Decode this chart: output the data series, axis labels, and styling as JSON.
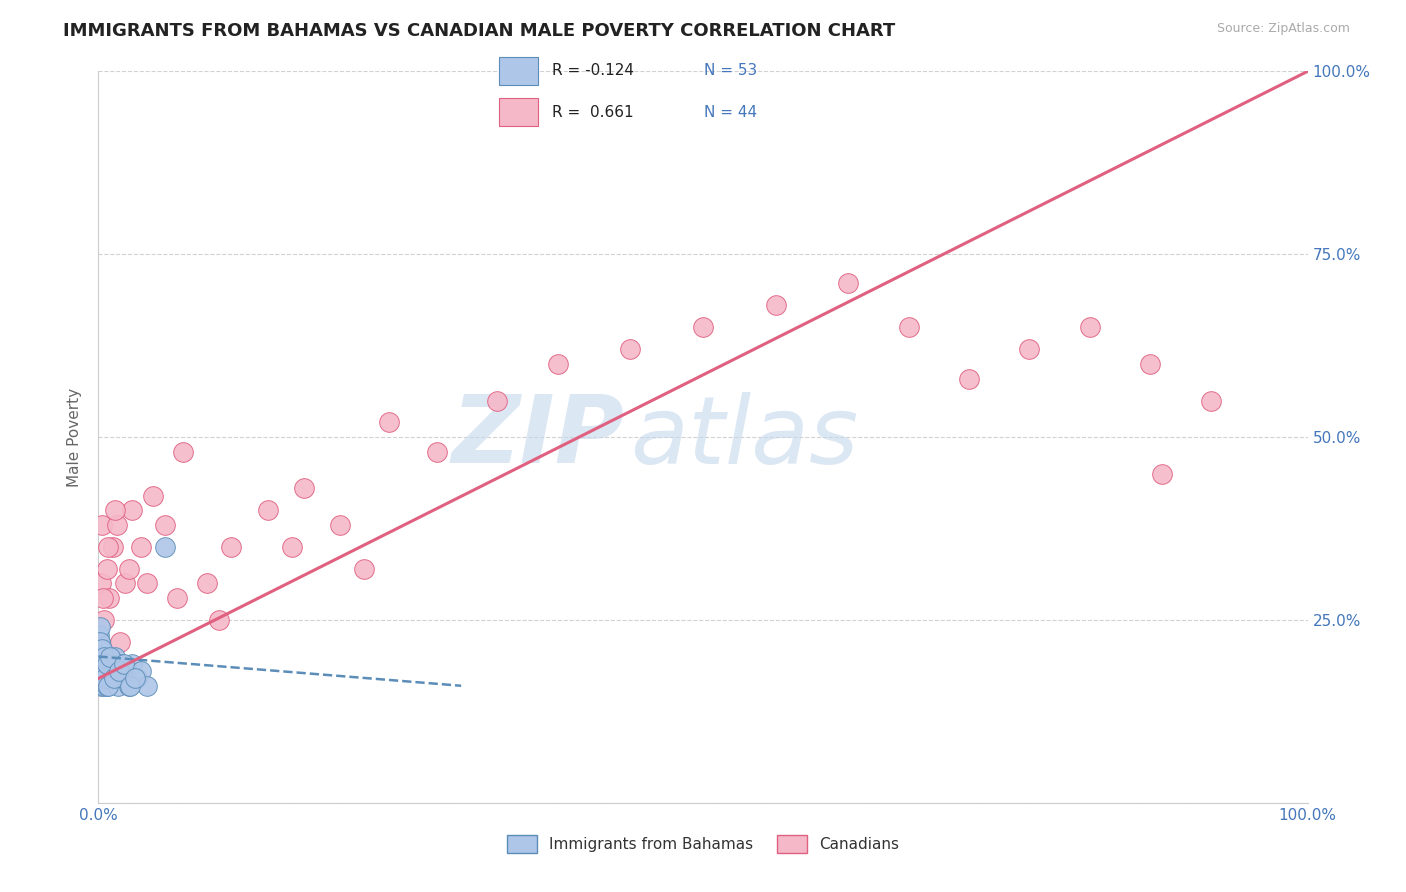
{
  "title": "IMMIGRANTS FROM BAHAMAS VS CANADIAN MALE POVERTY CORRELATION CHART",
  "source_text": "Source: ZipAtlas.com",
  "ylabel": "Male Poverty",
  "blue_color": "#aec6e8",
  "blue_edge_color": "#5b8db8",
  "blue_line_color": "#5b8db8",
  "pink_color": "#f5b8c8",
  "pink_edge_color": "#e06080",
  "pink_line_color": "#e06080",
  "watermark_zip_color": "#c5d8ed",
  "watermark_atlas_color": "#c5d8ed",
  "bg_color": "#ffffff",
  "grid_color": "#cccccc",
  "title_color": "#222222",
  "source_color": "#aaaaaa",
  "axis_color": "#4477bb",
  "ylabel_color": "#666666",
  "legend_r_color": "#222222",
  "legend_n_color": "#4477bb",
  "xlim": [
    0,
    100
  ],
  "ylim": [
    0,
    100
  ],
  "blue_scatter_x": [
    0.05,
    0.08,
    0.1,
    0.12,
    0.15,
    0.18,
    0.2,
    0.22,
    0.25,
    0.3,
    0.35,
    0.4,
    0.45,
    0.5,
    0.55,
    0.6,
    0.65,
    0.7,
    0.8,
    0.9,
    1.0,
    1.1,
    1.2,
    1.4,
    1.6,
    1.8,
    2.0,
    2.2,
    2.5,
    2.8,
    3.2,
    3.5,
    4.0,
    0.05,
    0.07,
    0.09,
    0.11,
    0.14,
    0.17,
    0.21,
    0.28,
    0.38,
    0.48,
    0.58,
    0.68,
    0.78,
    0.95,
    1.3,
    1.7,
    2.1,
    2.6,
    3.0,
    5.5
  ],
  "blue_scatter_y": [
    18.0,
    17.0,
    20.0,
    22.0,
    19.0,
    16.0,
    21.0,
    18.0,
    20.0,
    17.0,
    19.0,
    18.0,
    17.0,
    16.0,
    18.0,
    17.0,
    19.0,
    16.0,
    20.0,
    17.0,
    19.0,
    18.0,
    17.0,
    20.0,
    16.0,
    19.0,
    17.0,
    18.0,
    16.0,
    19.0,
    17.0,
    18.0,
    16.0,
    22.0,
    23.0,
    21.0,
    24.0,
    20.0,
    22.0,
    19.0,
    21.0,
    18.0,
    20.0,
    17.0,
    19.0,
    16.0,
    20.0,
    17.0,
    18.0,
    19.0,
    16.0,
    17.0,
    35.0
  ],
  "pink_scatter_x": [
    0.1,
    0.2,
    0.3,
    0.5,
    0.7,
    0.9,
    1.2,
    1.5,
    1.8,
    2.2,
    2.8,
    3.5,
    4.5,
    5.5,
    7.0,
    9.0,
    11.0,
    14.0,
    17.0,
    20.0,
    24.0,
    28.0,
    33.0,
    38.0,
    44.0,
    50.0,
    56.0,
    62.0,
    67.0,
    72.0,
    77.0,
    82.0,
    87.0,
    92.0,
    0.4,
    0.8,
    1.4,
    2.5,
    4.0,
    6.5,
    10.0,
    16.0,
    22.0,
    88.0
  ],
  "pink_scatter_y": [
    20.0,
    30.0,
    38.0,
    25.0,
    32.0,
    28.0,
    35.0,
    38.0,
    22.0,
    30.0,
    40.0,
    35.0,
    42.0,
    38.0,
    48.0,
    30.0,
    35.0,
    40.0,
    43.0,
    38.0,
    52.0,
    48.0,
    55.0,
    60.0,
    62.0,
    65.0,
    68.0,
    71.0,
    65.0,
    58.0,
    62.0,
    65.0,
    60.0,
    55.0,
    28.0,
    35.0,
    40.0,
    32.0,
    30.0,
    28.0,
    25.0,
    35.0,
    32.0,
    45.0
  ],
  "blue_trend_x0": 0,
  "blue_trend_x1": 30,
  "blue_trend_y0": 20,
  "blue_trend_y1": 16,
  "pink_trend_x0": 0,
  "pink_trend_x1": 100,
  "pink_trend_y0": 17,
  "pink_trend_y1": 100
}
